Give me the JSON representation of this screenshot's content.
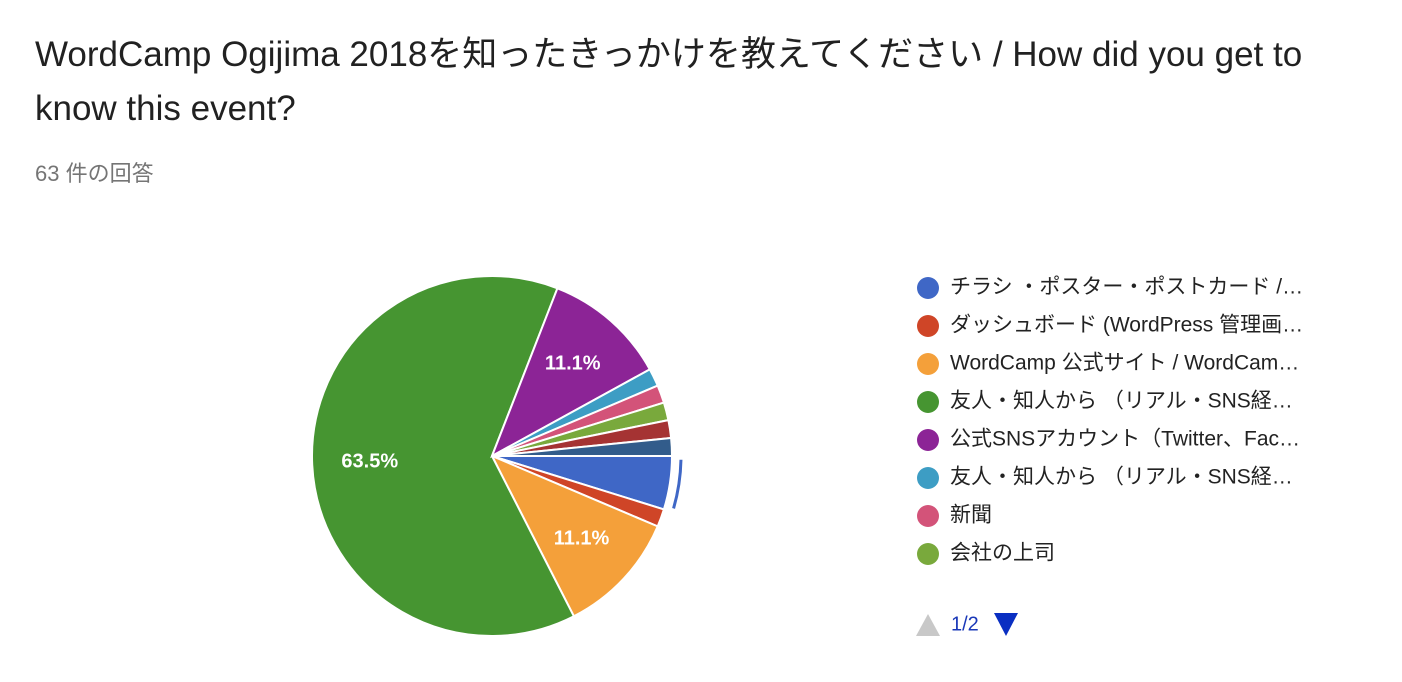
{
  "chart_data": {
    "type": "pie",
    "title": "WordCamp Ogijima 2018を知ったきっかけを教えてください / How did you get to know this event?",
    "subtitle": "63 件の回答",
    "categories": [
      "チラシ ・ポスター・ポストカード /…",
      "ダッシュボード (WordPress 管理画…",
      "WordCamp 公式サイト / WordCam…",
      "友人・知人から （リアル・SNS経…",
      "公式SNSアカウント（Twitter、Fac…",
      "友人・知人から （リアル・SNS経…",
      "新聞",
      "会社の上司",
      null,
      null
    ],
    "values": [
      4.8,
      1.6,
      11.1,
      63.5,
      11.1,
      1.6,
      1.6,
      1.6,
      1.6,
      1.6
    ],
    "value_labels": [
      null,
      null,
      "11.1%",
      "63.5%",
      "11.1%",
      null,
      null,
      null,
      null,
      null
    ],
    "colors": [
      "#3f67c6",
      "#cf4527",
      "#f4a03a",
      "#469531",
      "#8c2496",
      "#3d9dc4",
      "#d35379",
      "#79a93c",
      "#a53333",
      "#325c8b"
    ],
    "legend_page": "1/2"
  }
}
